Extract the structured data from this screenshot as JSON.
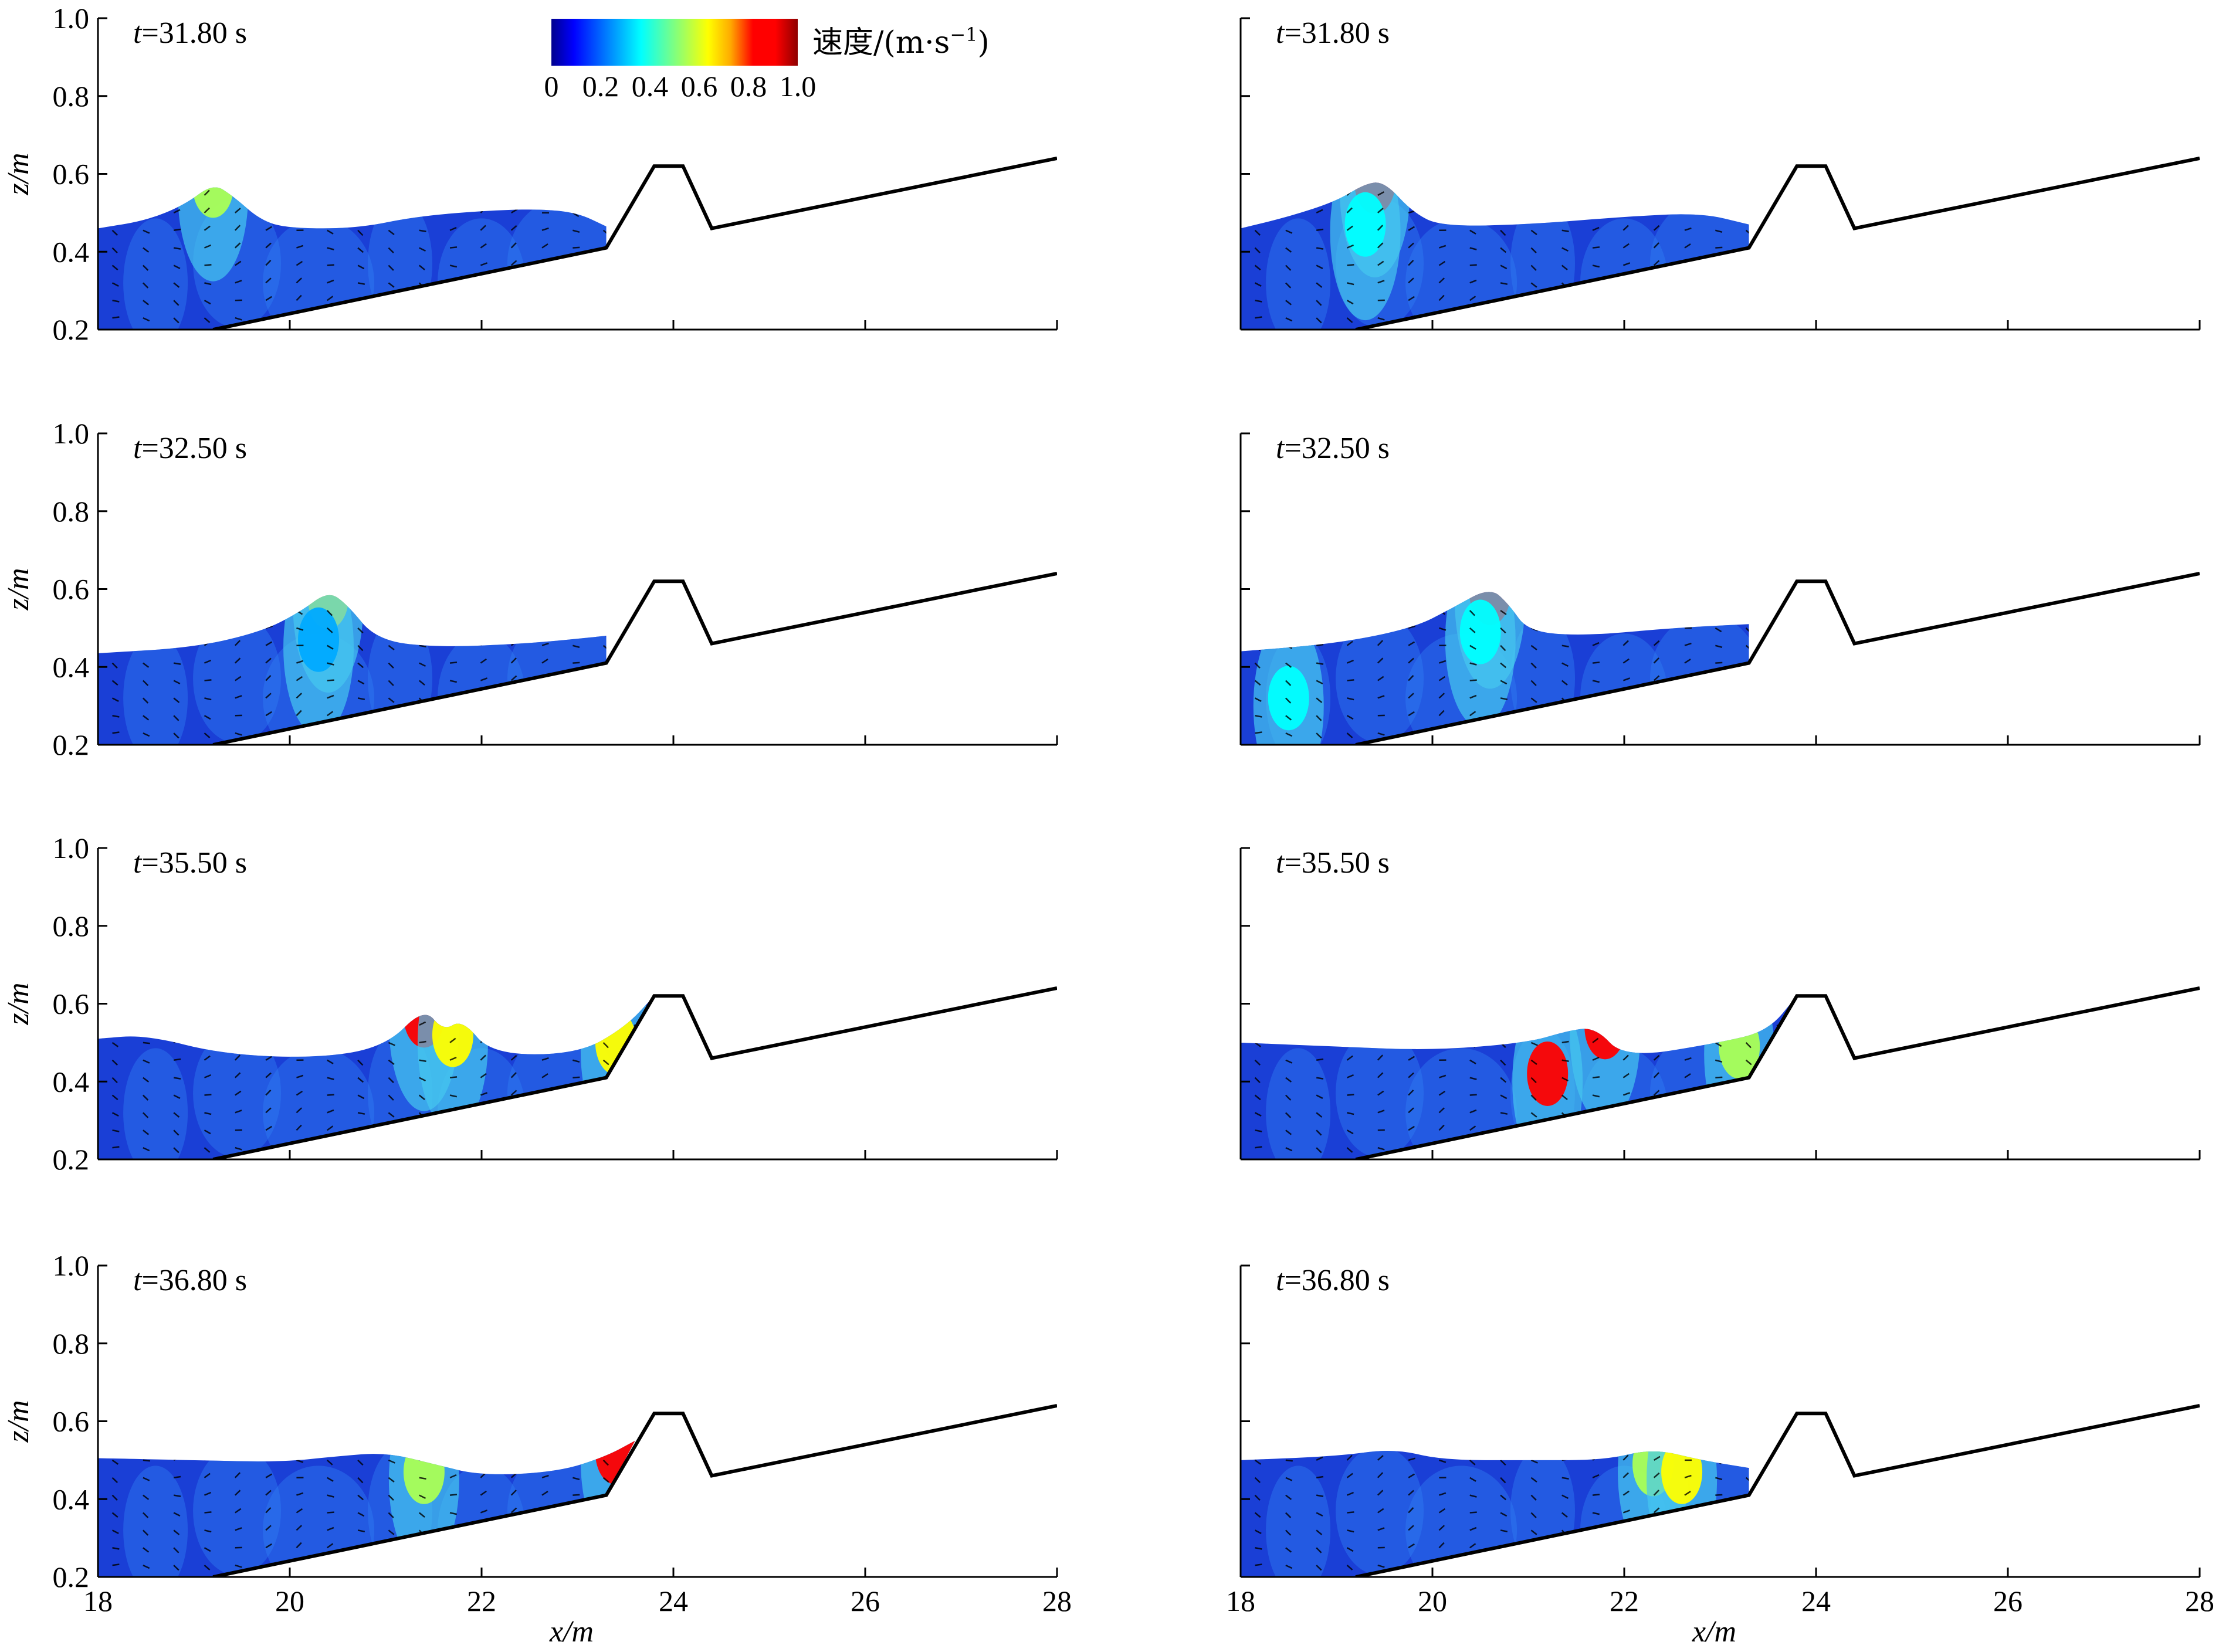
{
  "chart_data": {
    "type": "contour",
    "layout": "4 rows x 2 columns",
    "xlabel": "x/m",
    "ylabel": "z/m",
    "xlim": [
      18,
      28
    ],
    "ylim": [
      0.2,
      1.0
    ],
    "xticks": [
      "18",
      "20",
      "22",
      "24",
      "26",
      "28"
    ],
    "yticks": [
      "0.2",
      "0.4",
      "0.6",
      "0.8",
      "1.0"
    ],
    "colorbar": {
      "title": "速度/(m·s",
      "title_sup": "−1",
      "title_close": ")",
      "range": [
        0,
        1.0
      ],
      "ticks": [
        "0",
        "0.2",
        "0.4",
        "0.6",
        "0.8",
        "1.0"
      ],
      "colors": [
        "#00008f",
        "#0000ff",
        "#0055ff",
        "#00aaff",
        "#00ffff",
        "#55ffaa",
        "#aaff55",
        "#ffff00",
        "#ffaa00",
        "#ff0000",
        "#ff0000",
        "#8f0000"
      ]
    },
    "colors": {
      "water_base": "#1a3fd6",
      "water_mid": "#2f7df2",
      "water_light": "#46c8f0",
      "fast_green": "#9af06a",
      "fast_yellow": "#f2e63a",
      "fast_red": "#e01010",
      "fast_dark_red": "#a50e0e",
      "seabed_line": "#000000"
    },
    "seabed_profile": [
      [
        19.2,
        0.2
      ],
      [
        23.3,
        0.41
      ],
      [
        23.8,
        0.62
      ],
      [
        24.1,
        0.62
      ],
      [
        24.4,
        0.46
      ],
      [
        28.0,
        0.64
      ]
    ],
    "panels": [
      {
        "row": 0,
        "col": 0,
        "time_value": "31.80",
        "time_unit": " s",
        "surface": [
          [
            18.0,
            0.46
          ],
          [
            18.5,
            0.48
          ],
          [
            18.9,
            0.52
          ],
          [
            19.2,
            0.575
          ],
          [
            19.4,
            0.545
          ],
          [
            19.7,
            0.48
          ],
          [
            20.0,
            0.46
          ],
          [
            20.7,
            0.46
          ],
          [
            21.3,
            0.49
          ],
          [
            22.0,
            0.505
          ],
          [
            22.6,
            0.51
          ],
          [
            23.0,
            0.5
          ],
          [
            23.3,
            0.465
          ]
        ],
        "hotspots": [
          {
            "x": 19.2,
            "z": 0.55,
            "v": 0.5
          }
        ]
      },
      {
        "row": 0,
        "col": 1,
        "time_value": "31.80",
        "time_unit": " s",
        "surface": [
          [
            18.0,
            0.46
          ],
          [
            18.5,
            0.49
          ],
          [
            19.0,
            0.53
          ],
          [
            19.3,
            0.575
          ],
          [
            19.5,
            0.58
          ],
          [
            19.8,
            0.5
          ],
          [
            20.1,
            0.465
          ],
          [
            21.0,
            0.47
          ],
          [
            22.0,
            0.49
          ],
          [
            22.8,
            0.5
          ],
          [
            23.3,
            0.47
          ]
        ],
        "hotspots": [
          {
            "x": 19.4,
            "z": 0.56,
            "v": 0.9
          },
          {
            "x": 19.3,
            "z": 0.45,
            "v": 0.4
          }
        ]
      },
      {
        "row": 1,
        "col": 0,
        "time_value": "32.50",
        "time_unit": " s",
        "surface": [
          [
            18.0,
            0.435
          ],
          [
            19.0,
            0.45
          ],
          [
            19.7,
            0.49
          ],
          [
            20.1,
            0.54
          ],
          [
            20.4,
            0.595
          ],
          [
            20.6,
            0.56
          ],
          [
            20.9,
            0.47
          ],
          [
            21.5,
            0.45
          ],
          [
            22.5,
            0.46
          ],
          [
            23.3,
            0.48
          ]
        ],
        "hotspots": [
          {
            "x": 20.4,
            "z": 0.56,
            "v": 0.6
          },
          {
            "x": 20.3,
            "z": 0.45,
            "v": 0.3
          }
        ]
      },
      {
        "row": 1,
        "col": 1,
        "time_value": "32.50",
        "time_unit": " s",
        "surface": [
          [
            18.0,
            0.44
          ],
          [
            19.0,
            0.46
          ],
          [
            19.8,
            0.5
          ],
          [
            20.2,
            0.55
          ],
          [
            20.6,
            0.605
          ],
          [
            20.8,
            0.56
          ],
          [
            21.0,
            0.49
          ],
          [
            21.6,
            0.48
          ],
          [
            22.5,
            0.5
          ],
          [
            23.3,
            0.51
          ]
        ],
        "hotspots": [
          {
            "x": 20.6,
            "z": 0.57,
            "v": 0.9
          },
          {
            "x": 20.5,
            "z": 0.47,
            "v": 0.4
          },
          {
            "x": 18.5,
            "z": 0.3,
            "v": 0.35
          }
        ]
      },
      {
        "row": 2,
        "col": 0,
        "time_value": "35.50",
        "time_unit": " s",
        "surface": [
          [
            18.0,
            0.51
          ],
          [
            18.5,
            0.52
          ],
          [
            19.3,
            0.47
          ],
          [
            20.3,
            0.46
          ],
          [
            21.0,
            0.49
          ],
          [
            21.4,
            0.59
          ],
          [
            21.6,
            0.53
          ],
          [
            21.8,
            0.56
          ],
          [
            22.1,
            0.47
          ],
          [
            23.0,
            0.47
          ],
          [
            23.5,
            0.54
          ],
          [
            23.8,
            0.62
          ]
        ],
        "hotspots": [
          {
            "x": 21.4,
            "z": 0.55,
            "v": 0.9
          },
          {
            "x": 21.7,
            "z": 0.5,
            "v": 0.6
          },
          {
            "x": 23.4,
            "z": 0.48,
            "v": 0.6
          }
        ]
      },
      {
        "row": 2,
        "col": 1,
        "time_value": "35.50",
        "time_unit": " s",
        "surface": [
          [
            18.0,
            0.5
          ],
          [
            19.0,
            0.49
          ],
          [
            20.0,
            0.48
          ],
          [
            21.0,
            0.5
          ],
          [
            21.4,
            0.53
          ],
          [
            21.7,
            0.54
          ],
          [
            22.0,
            0.46
          ],
          [
            23.0,
            0.5
          ],
          [
            23.5,
            0.53
          ],
          [
            23.8,
            0.62
          ]
        ],
        "hotspots": [
          {
            "x": 21.2,
            "z": 0.4,
            "v": 0.85
          },
          {
            "x": 21.8,
            "z": 0.52,
            "v": 0.9
          },
          {
            "x": 23.2,
            "z": 0.47,
            "v": 0.5
          }
        ]
      },
      {
        "row": 3,
        "col": 0,
        "time_value": "36.80",
        "time_unit": " s",
        "surface": [
          [
            18.0,
            0.505
          ],
          [
            19.0,
            0.5
          ],
          [
            19.9,
            0.495
          ],
          [
            20.5,
            0.51
          ],
          [
            21.0,
            0.52
          ],
          [
            21.5,
            0.49
          ],
          [
            22.0,
            0.46
          ],
          [
            22.8,
            0.47
          ],
          [
            23.3,
            0.51
          ],
          [
            23.6,
            0.55
          ]
        ],
        "hotspots": [
          {
            "x": 21.4,
            "z": 0.45,
            "v": 0.5
          },
          {
            "x": 23.4,
            "z": 0.5,
            "v": 0.8
          }
        ]
      },
      {
        "row": 3,
        "col": 1,
        "time_value": "36.80",
        "time_unit": " s",
        "surface": [
          [
            18.0,
            0.5
          ],
          [
            19.0,
            0.51
          ],
          [
            19.6,
            0.53
          ],
          [
            20.1,
            0.5
          ],
          [
            21.0,
            0.5
          ],
          [
            21.8,
            0.5
          ],
          [
            22.3,
            0.53
          ],
          [
            22.8,
            0.5
          ],
          [
            23.3,
            0.48
          ]
        ],
        "hotspots": [
          {
            "x": 22.3,
            "z": 0.47,
            "v": 0.55
          },
          {
            "x": 22.6,
            "z": 0.45,
            "v": 0.6
          }
        ]
      }
    ]
  }
}
